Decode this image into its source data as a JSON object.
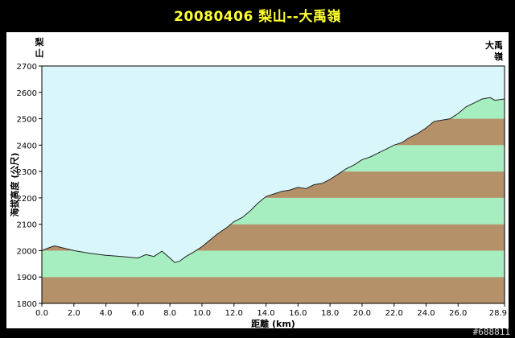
{
  "title": "20080406  梨山--大禹嶺",
  "watermark": "#688811",
  "chart_data": {
    "type": "area",
    "title": "20080406  梨山--大禹嶺",
    "xlabel": "距離 (km)",
    "ylabel": "海拔高度 (公尺)",
    "start_label": "梨山",
    "end_label": "大禹嶺",
    "xlim": [
      0,
      28.9
    ],
    "ylim": [
      1800,
      2700
    ],
    "xticks": [
      "0.0",
      "2.0",
      "4.0",
      "6.0",
      "8.0",
      "10.0",
      "12.0",
      "14.0",
      "16.0",
      "18.0",
      "20.0",
      "22.0",
      "24.0",
      "26.0",
      "28.9"
    ],
    "xtick_values": [
      0,
      2,
      4,
      6,
      8,
      10,
      12,
      14,
      16,
      18,
      20,
      22,
      24,
      26,
      28.9
    ],
    "yticks": [
      1800,
      1900,
      2000,
      2100,
      2200,
      2300,
      2400,
      2500,
      2600,
      2700
    ],
    "band_colors": [
      "#b5916a",
      "#a6edbf"
    ],
    "sky_color": "#d9f7fb",
    "grid": false,
    "series": [
      {
        "x": [
          0,
          0.5,
          0.8,
          1.2,
          2.0,
          3.0,
          4.0,
          5.0,
          6.0,
          6.5,
          7.0,
          7.5,
          8.0,
          8.3,
          8.6,
          9.0,
          9.5,
          10.0,
          10.5,
          11.0,
          11.5,
          12.0,
          12.5,
          13.0,
          13.5,
          14.0,
          14.5,
          15.0,
          15.5,
          16.0,
          16.5,
          17.0,
          17.5,
          18.0,
          18.5,
          19.0,
          19.5,
          20.0,
          20.5,
          21.0,
          21.5,
          22.0,
          22.5,
          23.0,
          23.5,
          24.0,
          24.5,
          25.0,
          25.5,
          26.0,
          26.5,
          27.0,
          27.5,
          28.0,
          28.3,
          28.9
        ],
        "y": [
          2000,
          2012,
          2018,
          2012,
          2000,
          1990,
          1982,
          1978,
          1972,
          1985,
          1978,
          1998,
          1972,
          1955,
          1960,
          1978,
          1995,
          2015,
          2040,
          2065,
          2085,
          2110,
          2125,
          2150,
          2180,
          2205,
          2215,
          2225,
          2230,
          2240,
          2235,
          2250,
          2255,
          2270,
          2290,
          2310,
          2325,
          2345,
          2355,
          2370,
          2385,
          2400,
          2410,
          2430,
          2445,
          2465,
          2490,
          2495,
          2500,
          2520,
          2545,
          2560,
          2575,
          2580,
          2570,
          2575
        ]
      }
    ]
  }
}
